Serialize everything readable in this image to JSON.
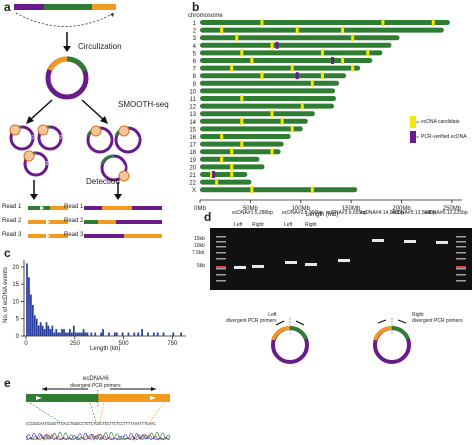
{
  "panels": {
    "a": {
      "letter": "a",
      "circularization": "Circulization",
      "smooth_seq": "SMOOTH-seq",
      "detection": "Detection",
      "ecdna_labels": [
        "ecDNA#1",
        "ecDNA#2",
        "ecDNA#3",
        "ecDNA#1",
        "ecDNA#2",
        "ecDNA#3"
      ],
      "reads": [
        "Read 1",
        "Read 2",
        "Read 3",
        "Read 1",
        "Read 2",
        "Read 3"
      ]
    },
    "b": {
      "letter": "b",
      "chromosome_label": "chromosome",
      "chromosomes": [
        "1",
        "2",
        "3",
        "4",
        "5",
        "6",
        "7",
        "8",
        "9",
        "10",
        "11",
        "12",
        "13",
        "14",
        "15",
        "16",
        "17",
        "18",
        "19",
        "20",
        "21",
        "22",
        "X"
      ],
      "x_ticks": [
        "0Mb",
        "50Mb",
        "100Mb",
        "150Mb",
        "200Mb",
        "250Mb"
      ],
      "xlabel": "Length (Mb)",
      "legend": [
        "ecDNA candidate",
        "PCR-verified ecDNA"
      ],
      "colors": {
        "chromosome": "#2e7d32",
        "candidate": "#f5e50a",
        "verified": "#6a1b8a"
      }
    },
    "c": {
      "letter": "c",
      "ylabel": "No. of ecDNA events",
      "xlabel": "Length (kb)",
      "y_ticks": [
        "0",
        "5",
        "10",
        "15",
        "20"
      ],
      "x_ticks": [
        "0",
        "250",
        "500",
        "750"
      ],
      "bar_color": "#2b3f9e"
    },
    "d": {
      "letter": "d",
      "lanes": [
        {
          "name": "ecDNA#1:",
          "size": "5,286bp"
        },
        {
          "name": "ecDNA#2:",
          "size": "5,906bp"
        },
        {
          "name": "ecDNA#3:",
          "size": "6,655bp"
        },
        {
          "name": "ecDNA#4:",
          "size": "14,980bp"
        },
        {
          "name": "ecDNA#5:",
          "size": "13,534bp"
        },
        {
          "name": "ecDNA#6:",
          "size": "12,225bp"
        }
      ],
      "left_label": "Left",
      "right_label": "Right",
      "markers": [
        "15kb",
        "10kb",
        "7.5kb",
        "5kb"
      ],
      "primer_left": "Left\ndivergent PCR primers",
      "primer_right": "Right\ndivergent PCR primers"
    },
    "e": {
      "letter": "e",
      "title": "ecDNA#6",
      "subtitle": "divergent PCR primers",
      "sequence": "CCCGGCAATGGGGTTCACCTGGGCCTGTCTGGCTGCTTCTCCTTTTAAATTTGAAC"
    }
  },
  "chart_data": [
    {
      "type": "bar",
      "title": "",
      "xlabel": "Length (Mb)",
      "ylabel": "",
      "categories": [
        "1",
        "2",
        "3",
        "4",
        "5",
        "6",
        "7",
        "8",
        "9",
        "10",
        "11",
        "12",
        "13",
        "14",
        "15",
        "16",
        "17",
        "18",
        "19",
        "20",
        "21",
        "22",
        "X"
      ],
      "values": [
        248,
        242,
        198,
        190,
        181,
        171,
        159,
        145,
        138,
        134,
        135,
        133,
        114,
        107,
        102,
        90,
        83,
        80,
        59,
        64,
        47,
        51,
        156
      ],
      "xlim": [
        0,
        260
      ]
    },
    {
      "type": "bar",
      "title": "",
      "xlabel": "Length (kb)",
      "ylabel": "No. of ecDNA events",
      "ylim": [
        0,
        22
      ],
      "xlim": [
        0,
        820
      ],
      "x": [
        5,
        15,
        25,
        35,
        45,
        55,
        65,
        75,
        85,
        95,
        105,
        115,
        125,
        135,
        145,
        155,
        165,
        175,
        185,
        195,
        205,
        215,
        225,
        235,
        245,
        255,
        265,
        275,
        285,
        295,
        305,
        315,
        335,
        355,
        385,
        395,
        425,
        455,
        465,
        495,
        525,
        555,
        575,
        595,
        625,
        655,
        675,
        705,
        755,
        795
      ],
      "values": [
        21,
        17,
        12,
        9,
        6,
        5,
        3,
        4,
        3,
        2,
        4,
        3,
        2,
        3,
        1,
        2,
        1,
        1,
        2,
        2,
        1,
        1,
        2,
        1,
        3,
        1,
        1,
        1,
        1,
        2,
        1,
        1,
        1,
        1,
        1,
        2,
        1,
        1,
        1,
        1,
        1,
        1,
        1,
        2,
        1,
        1,
        1,
        1,
        1,
        1
      ]
    }
  ]
}
